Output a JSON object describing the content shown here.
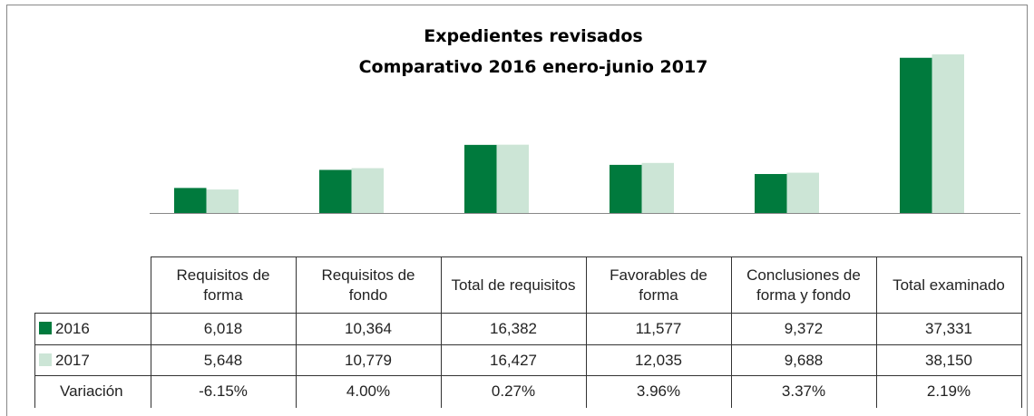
{
  "chart_data": {
    "type": "bar",
    "title": "Expedientes revisados",
    "subtitle": "Comparativo 2016 enero-junio 2017",
    "categories": [
      "Requisitos de forma",
      "Requisitos de fondo",
      "Total de requisitos",
      "Favorables de forma",
      "Conclusiones de forma y fondo",
      "Total examinado"
    ],
    "series": [
      {
        "name": "2016",
        "color": "#007a3d",
        "values": [
          6018,
          10364,
          16382,
          11577,
          9372,
          37331
        ],
        "value_labels": [
          "6,018",
          "10,364",
          "16,382",
          "11,577",
          "9,372",
          "37,331"
        ]
      },
      {
        "name": "2017",
        "color": "#cce5d6",
        "values": [
          5648,
          10779,
          16427,
          12035,
          9688,
          38150
        ],
        "value_labels": [
          "5,648",
          "10,779",
          "16,427",
          "12,035",
          "9,688",
          "38,150"
        ]
      }
    ],
    "variation_name": "Variación",
    "variation_labels": [
      "-6.15%",
      "4.00%",
      "0.27%",
      "3.96%",
      "3.37%",
      "2.19%"
    ]
  }
}
